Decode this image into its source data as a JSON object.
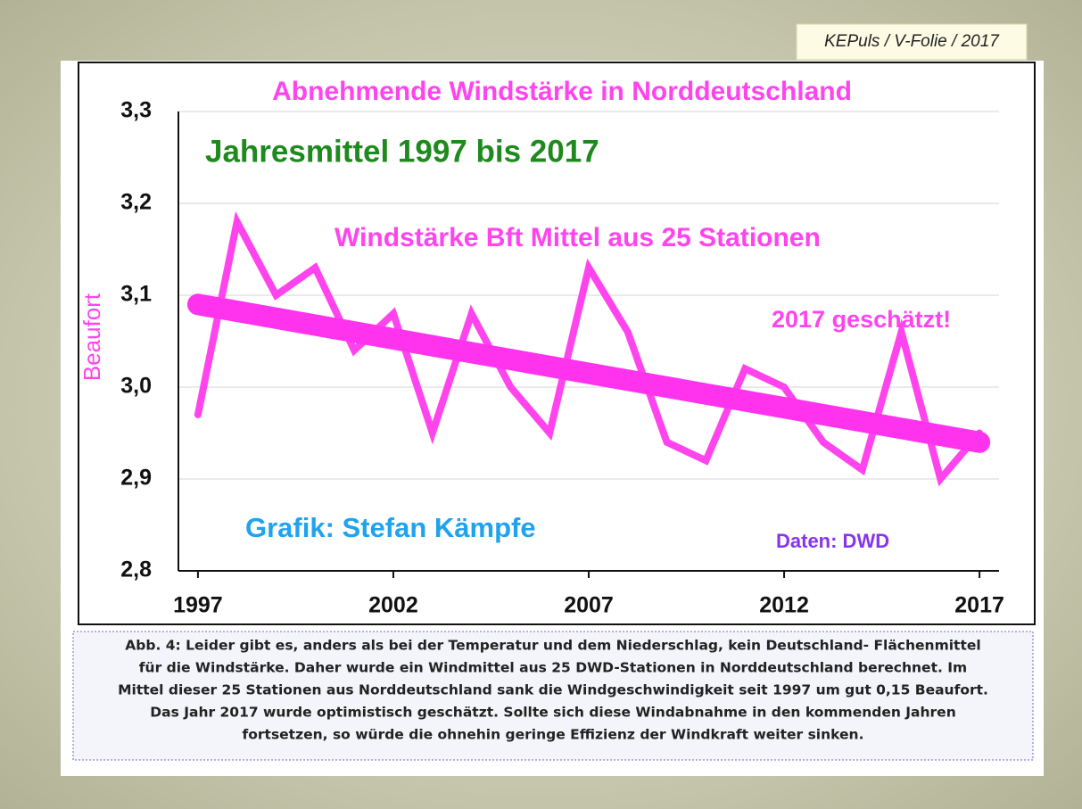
{
  "header": "KEPuls / V-Folie / 2017",
  "chart_data": {
    "type": "line",
    "title": "Abnehmende Windstärke in Norddeutschland",
    "subtitle": "Jahresmittel 1997 bis 2017",
    "y_label": "Beaufort",
    "annotations": [
      "Windstärke Bft Mittel aus 25 Stationen",
      "2017 geschätzt!",
      "Grafik: Stefan Kämpfe",
      "Daten: DWD"
    ],
    "x": [
      1997,
      1998,
      1999,
      2000,
      2001,
      2002,
      2003,
      2004,
      2005,
      2006,
      2007,
      2008,
      2009,
      2010,
      2011,
      2012,
      2013,
      2014,
      2015,
      2016,
      2017
    ],
    "series": [
      {
        "color": "#ff44ee",
        "values": [
          2.97,
          3.18,
          3.1,
          3.13,
          3.04,
          3.08,
          2.95,
          3.08,
          3.0,
          2.95,
          3.13,
          3.06,
          2.94,
          2.92,
          3.02,
          3.0,
          2.94,
          2.91,
          3.06,
          2.9,
          2.95
        ]
      }
    ],
    "trend": {
      "color": "#ff33ee",
      "x": [
        1997,
        2017
      ],
      "values": [
        3.09,
        2.94
      ]
    },
    "xlim": [
      1996.5,
      2017.5
    ],
    "xticks": [
      1997,
      2002,
      2007,
      2012,
      2017
    ],
    "ylim": [
      2.8,
      3.3
    ],
    "yticks": [
      {
        "value": 2.8,
        "label": "2,8"
      },
      {
        "value": 2.9,
        "label": "2,9"
      },
      {
        "value": 3.0,
        "label": "3,0"
      },
      {
        "value": 3.1,
        "label": "3,1"
      },
      {
        "value": 3.2,
        "label": "3,2"
      },
      {
        "value": 3.3,
        "label": "3,3"
      }
    ],
    "grid": true
  },
  "caption": [
    "Abb. 4: Leider gibt es, anders als bei der Temperatur und dem Niederschlag, kein Deutschland- Flächenmittel",
    "für die Windstärke. Daher wurde ein Windmittel aus 25 DWD-Stationen in Norddeutschland berechnet. Im",
    "Mittel dieser 25 Stationen aus Norddeutschland sank die Windgeschwindigkeit seit 1997 um gut 0,15 Beaufort.",
    "Das Jahr 2017 wurde optimistisch geschätzt. Sollte sich diese Windabnahme in den kommenden Jahren",
    "fortsetzen, so würde die ohnehin geringe Effizienz der Windkraft weiter sinken."
  ]
}
